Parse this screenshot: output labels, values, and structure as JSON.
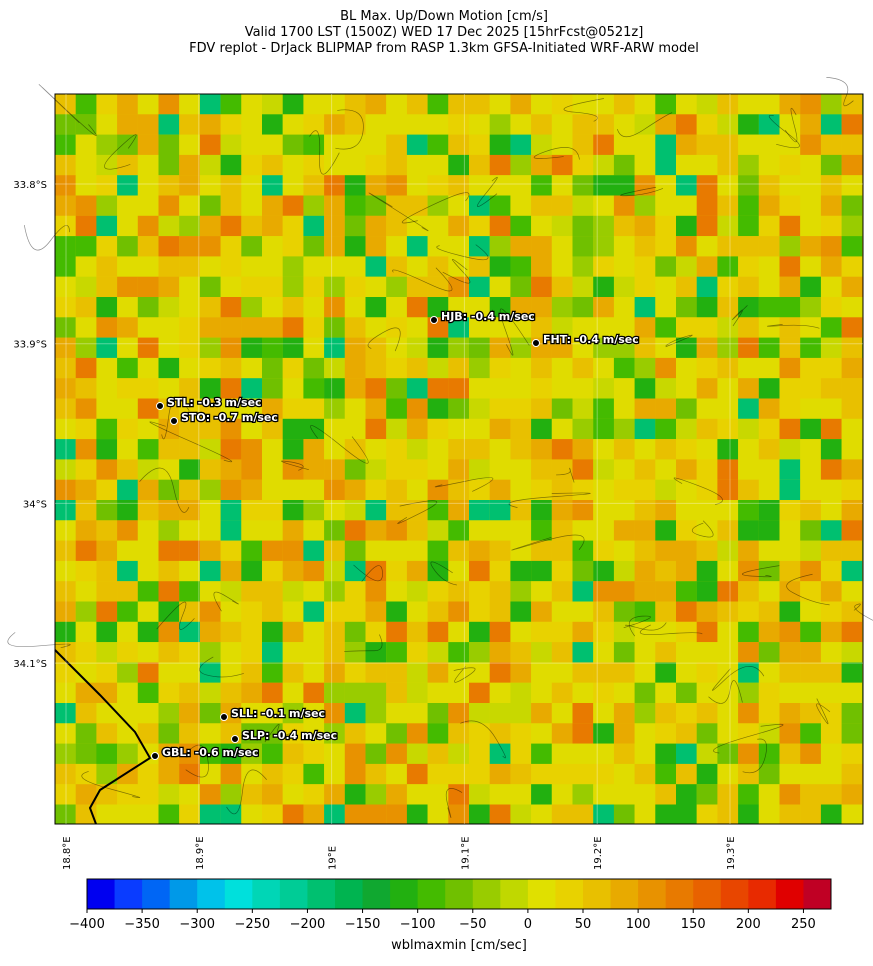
{
  "title": [
    "BL Max. Up/Down Motion [cm/s]",
    "Valid 1700 LST (1500Z) WED 17 Dec 2025 [15hrFcst@0521z]",
    "FDV replot - DrJack BLIPMAP from RASP 1.3km GFSA-Initiated WRF-ARW model"
  ],
  "map": {
    "lon_ticks": [
      {
        "value": 18.8,
        "label": "18.8°E"
      },
      {
        "value": 18.9,
        "label": "18.9°E"
      },
      {
        "value": 19.0,
        "label": "19°E"
      },
      {
        "value": 19.1,
        "label": "19.1°E"
      },
      {
        "value": 19.2,
        "label": "19.2°E"
      },
      {
        "value": 19.3,
        "label": "19.3°E"
      }
    ],
    "lat_ticks": [
      {
        "value": -33.8,
        "label": "33.8°S"
      },
      {
        "value": -33.9,
        "label": "33.9°S"
      },
      {
        "value": -34.0,
        "label": "34°S"
      },
      {
        "value": -34.1,
        "label": "34.1°S"
      }
    ],
    "stations": [
      "STL: -0.3 m/sec",
      "STO: -0.7 m/sec",
      "HJB: -0.4 m/sec",
      "FHT: -0.4 m/sec",
      "SLL: -0.1 m/sec",
      "SLP: -0.4 m/sec",
      "GBL: -0.6 m/sec"
    ]
  },
  "colorbar": {
    "label": "wblmaxmin [cm/sec]",
    "lim": [
      -400,
      275
    ],
    "ticks": [
      {
        "value": -400,
        "label": "−400"
      },
      {
        "value": -350,
        "label": "−350"
      },
      {
        "value": -300,
        "label": "−300"
      },
      {
        "value": -250,
        "label": "−250"
      },
      {
        "value": -200,
        "label": "−200"
      },
      {
        "value": -150,
        "label": "−150"
      },
      {
        "value": -100,
        "label": "−100"
      },
      {
        "value": -50,
        "label": "−50"
      },
      0,
      50,
      100,
      150,
      200,
      250
    ],
    "colors": [
      "#0000f0",
      "#0a3cff",
      "#0066f5",
      "#0099e8",
      "#00c2ea",
      "#00e0dc",
      "#00d6b6",
      "#00cc96",
      "#00c070",
      "#00b450",
      "#10a830",
      "#22b010",
      "#44bb00",
      "#70c000",
      "#99cc00",
      "#c0d800",
      "#e0e000",
      "#e8d200",
      "#e8c000",
      "#e8aa00",
      "#e89200",
      "#e87a00",
      "#e86200",
      "#e84600",
      "#e82a00",
      "#e00000",
      "#c00024"
    ]
  }
}
